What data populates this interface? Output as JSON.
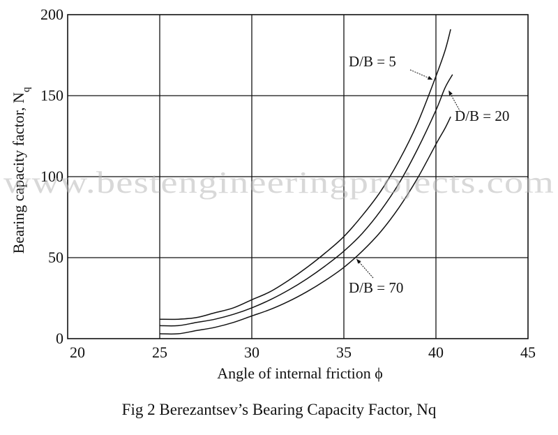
{
  "chart_data": {
    "type": "line",
    "title": "",
    "xlabel": "Angle of internal friction ϕ",
    "ylabel": "Bearing capacity factor, N",
    "ylabel_sub": "q",
    "xlim": [
      20,
      45
    ],
    "ylim": [
      0,
      200
    ],
    "x_ticks": [
      20,
      25,
      30,
      35,
      40,
      45
    ],
    "y_ticks": [
      0,
      50,
      100,
      150,
      200
    ],
    "grid": true,
    "series": [
      {
        "name": "D/B = 5",
        "x": [
          25,
          26,
          27,
          28,
          29,
          30,
          31,
          32,
          33,
          34,
          35,
          36,
          37,
          38,
          39,
          40,
          40.5,
          40.8
        ],
        "y": [
          12,
          12,
          13,
          16,
          19,
          24,
          29,
          36,
          44,
          53,
          63,
          76,
          91,
          110,
          133,
          162,
          178,
          191
        ]
      },
      {
        "name": "D/B = 20",
        "x": [
          25,
          26,
          27,
          28,
          29,
          30,
          31,
          32,
          33,
          34,
          35,
          36,
          37,
          38,
          39,
          40,
          40.5,
          40.9
        ],
        "y": [
          8,
          8,
          10,
          12,
          15,
          19,
          24,
          30,
          37,
          45,
          54,
          65,
          79,
          96,
          117,
          141,
          155,
          163
        ]
      },
      {
        "name": "D/B = 70",
        "x": [
          25,
          26,
          27,
          28,
          29,
          30,
          31,
          32,
          33,
          34,
          35,
          36,
          37,
          38,
          39,
          40,
          40.5,
          40.8
        ],
        "y": [
          3,
          3,
          5,
          7,
          10,
          14,
          18,
          23,
          29,
          36,
          44,
          54,
          66,
          81,
          99,
          120,
          130,
          137
        ]
      }
    ],
    "annotations": [
      {
        "text": "D/B = 5",
        "arrow_to": [
          39.8,
          160
        ]
      },
      {
        "text": "D/B = 20",
        "arrow_to": [
          40.7,
          153
        ]
      },
      {
        "text": "D/B = 70",
        "arrow_to": [
          35.7,
          49
        ]
      }
    ]
  },
  "watermark": "www.bestengineeringprojects.com",
  "caption": "Fig 2 Berezantsev’s Bearing Capacity Factor, Nq"
}
